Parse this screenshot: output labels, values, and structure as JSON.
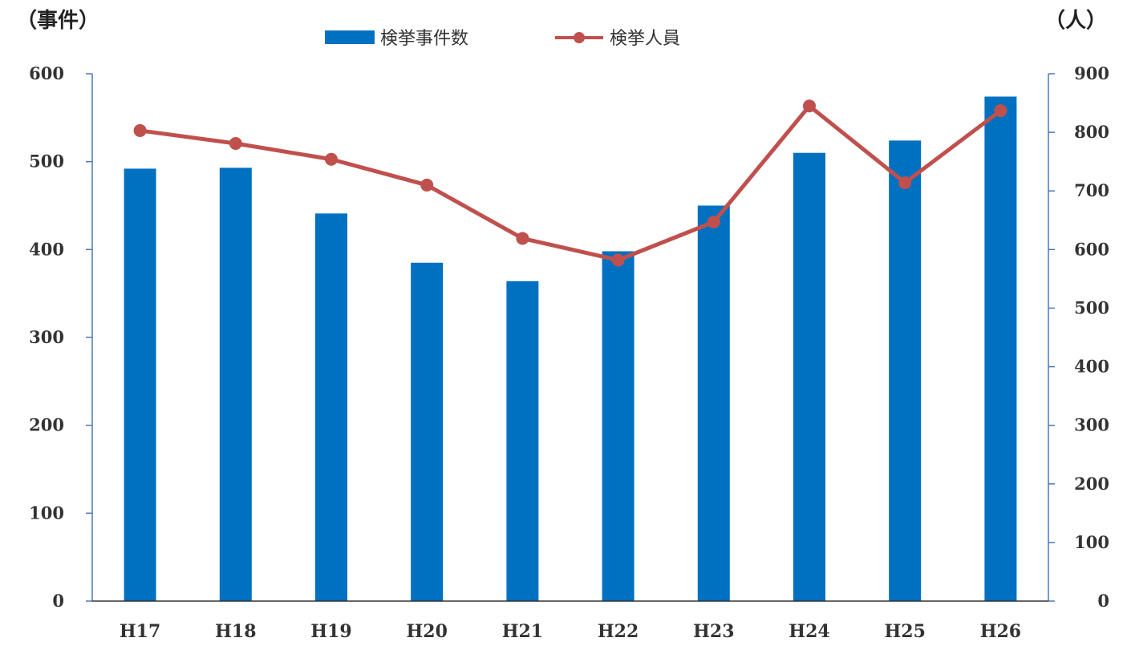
{
  "chart_data": {
    "type": "bar+line",
    "categories": [
      "H17",
      "H18",
      "H19",
      "H20",
      "H21",
      "H22",
      "H23",
      "H24",
      "H25",
      "H26"
    ],
    "left_axis": {
      "unit_label": "（事件）",
      "ylim": [
        0,
        600
      ],
      "ticks": [
        "0",
        "100",
        "200",
        "300",
        "400",
        "500",
        "600"
      ]
    },
    "right_axis": {
      "unit_label": "（人）",
      "ylim": [
        0,
        900
      ],
      "ticks": [
        "0",
        "100",
        "200",
        "300",
        "400",
        "500",
        "600",
        "700",
        "800",
        "900"
      ]
    },
    "series": [
      {
        "name": "検挙事件数",
        "kind": "bar",
        "axis": "left",
        "color": "#0070C0",
        "values": [
          492,
          493,
          441,
          385,
          364,
          398,
          450,
          510,
          524,
          574
        ]
      },
      {
        "name": "検挙人員",
        "kind": "line",
        "axis": "right",
        "color": "#C0504D",
        "values": [
          803,
          781,
          754,
          710,
          619,
          582,
          647,
          845,
          714,
          837
        ]
      }
    ],
    "legend": "top-center",
    "grid": false
  }
}
